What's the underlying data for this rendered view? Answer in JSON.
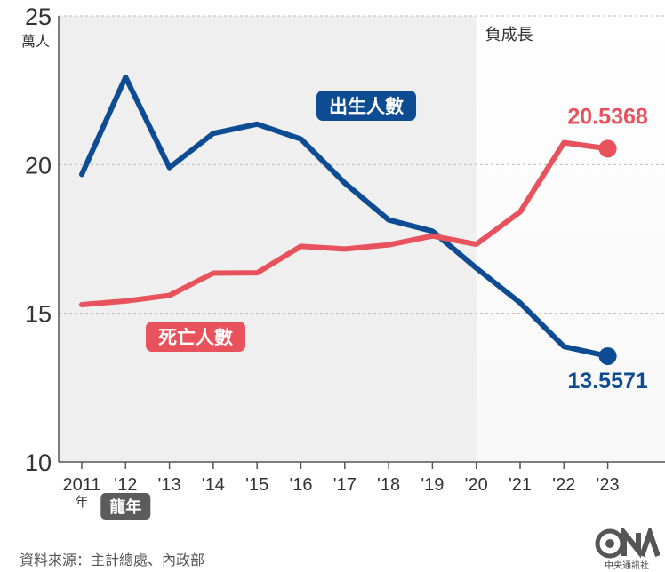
{
  "chart_data": {
    "type": "line",
    "y_unit": "萬人",
    "ylim": [
      10,
      25
    ],
    "y_ticks": [
      10,
      15,
      20,
      25
    ],
    "grid": true,
    "categories": [
      "2011",
      "'12",
      "'13",
      "'14",
      "'15",
      "'16",
      "'17",
      "'18",
      "'19",
      "'20",
      "'21",
      "'22",
      "'23"
    ],
    "x_unit_label": "年",
    "dragon_year_label": "龍年",
    "shaded_region": {
      "from": "'20",
      "to": "'23",
      "label": "負成長"
    },
    "series": [
      {
        "name": "出生人數",
        "color": "#0d4c93",
        "values": [
          19.67,
          22.94,
          19.9,
          21.05,
          21.36,
          20.86,
          19.38,
          18.14,
          17.76,
          16.52,
          15.35,
          13.88,
          13.5571
        ],
        "end_label": "13.5571"
      },
      {
        "name": "死亡人數",
        "color": "#e8525c",
        "values": [
          15.29,
          15.41,
          15.6,
          16.35,
          16.36,
          17.25,
          17.16,
          17.3,
          17.6,
          17.32,
          18.41,
          20.74,
          20.5368
        ],
        "end_label": "20.5368"
      }
    ]
  },
  "source": "資料來源：主計總處、內政部",
  "logo_text": "中央通訊社"
}
